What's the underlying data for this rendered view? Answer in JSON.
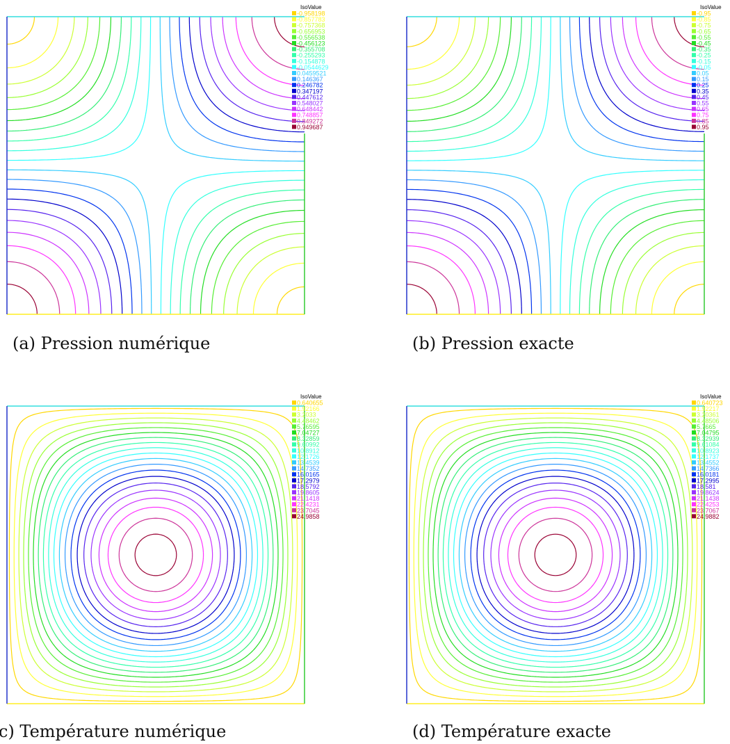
{
  "chart_data": [
    {
      "type": "contour",
      "panel": "a",
      "caption": "(a) Pression numérique",
      "legend_title": "IsoValue",
      "legend_position": "top-right",
      "field": "pressure",
      "levels": [
        "-0.958198",
        "-0.857783",
        "-0.757368",
        "-0.656953",
        "-0.556538",
        "-0.456123",
        "-0.355708",
        "-0.255293",
        "-0.154878",
        "-0.0544629",
        "0.0459521",
        "0.146367",
        "0.246782",
        "0.347197",
        "0.447612",
        "0.548027",
        "0.648442",
        "0.748857",
        "0.849272",
        "0.949687"
      ],
      "colors": [
        "#ffd700",
        "#ffff33",
        "#ccff33",
        "#99ff33",
        "#55ee33",
        "#22dd22",
        "#33ee77",
        "#33ffaa",
        "#33ffdd",
        "#33ffff",
        "#33ccff",
        "#3399ff",
        "#0033ee",
        "#0000cc",
        "#5522ee",
        "#9933ff",
        "#cc33ff",
        "#ff33ff",
        "#cc3399",
        "#990033"
      ]
    },
    {
      "type": "contour",
      "panel": "b",
      "caption": "(b) Pression exacte",
      "legend_title": "IsoValue",
      "legend_position": "top-right",
      "field": "pressure",
      "levels": [
        "-0.95",
        "-0.85",
        "-0.75",
        "-0.65",
        "-0.55",
        "-0.45",
        "-0.35",
        "-0.25",
        "-0.15",
        "-0.05",
        "0.05",
        "0.15",
        "0.25",
        "0.35",
        "0.45",
        "0.55",
        "0.65",
        "0.75",
        "0.85",
        "0.95"
      ],
      "colors": [
        "#ffd700",
        "#ffff33",
        "#ccff33",
        "#99ff33",
        "#55ee33",
        "#22dd22",
        "#33ee77",
        "#33ffaa",
        "#33ffdd",
        "#33ffff",
        "#33ccff",
        "#3399ff",
        "#0033ee",
        "#0000cc",
        "#5522ee",
        "#9933ff",
        "#cc33ff",
        "#ff33ff",
        "#cc3399",
        "#990033"
      ]
    },
    {
      "type": "contour",
      "panel": "c",
      "caption": "c) Température numérique",
      "legend_title": "IsoValue",
      "legend_position": "top-right",
      "field": "temperature",
      "levels": [
        "0.640655",
        "1.92166",
        "3.2033",
        "4.48462",
        "5.76595",
        "7.04727",
        "8.32859",
        "9.60992",
        "10.8912",
        "12.1726",
        "13.4539",
        "14.7352",
        "16.0165",
        "17.2979",
        "18.5792",
        "19.8605",
        "21.1418",
        "22.4231",
        "23.7045",
        "24.9858"
      ],
      "colors": [
        "#ffd700",
        "#ffff33",
        "#ccff33",
        "#99ff33",
        "#55ee33",
        "#22dd22",
        "#33ee77",
        "#33ffaa",
        "#33ffdd",
        "#33ffff",
        "#33ccff",
        "#3399ff",
        "#0033ee",
        "#0000cc",
        "#5522ee",
        "#9933ff",
        "#cc33ff",
        "#ff33ff",
        "#cc3399",
        "#990033"
      ]
    },
    {
      "type": "contour",
      "panel": "d",
      "caption": "(d) Température exacte",
      "legend_title": "IsoValue",
      "legend_position": "top-right",
      "field": "temperature",
      "levels": [
        "0.640723",
        "1.92217",
        "3.20361",
        "4.48506",
        "5.7665",
        "7.04795",
        "8.32939",
        "9.61084",
        "10.8923",
        "12.1737",
        "13.4552",
        "14.7366",
        "16.0181",
        "17.2995",
        "18.581",
        "19.8624",
        "21.1438",
        "22.4253",
        "23.7067",
        "24.9882"
      ],
      "colors": [
        "#ffd700",
        "#ffff33",
        "#ccff33",
        "#99ff33",
        "#55ee33",
        "#22dd22",
        "#33ee77",
        "#33ffaa",
        "#33ffdd",
        "#33ffff",
        "#33ccff",
        "#3399ff",
        "#0033ee",
        "#0000cc",
        "#5522ee",
        "#9933ff",
        "#cc33ff",
        "#ff33ff",
        "#cc3399",
        "#990033"
      ]
    }
  ]
}
